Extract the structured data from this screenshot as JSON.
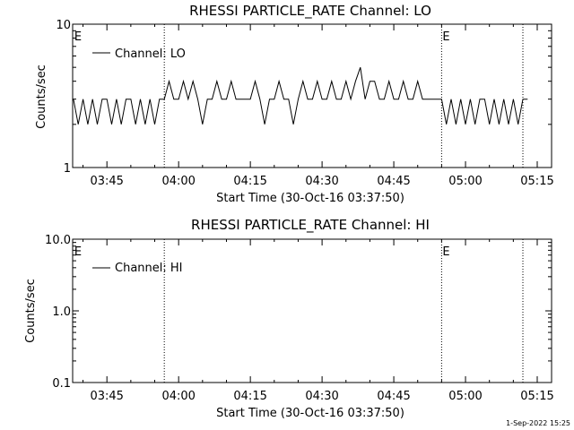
{
  "footer_timestamp": "1-Sep-2022 15:25",
  "chart_data": [
    {
      "type": "line",
      "title": "RHESSI PARTICLE_RATE Channel: LO",
      "xlabel": "Start Time (30-Oct-16 03:37:50)",
      "ylabel": "Counts/sec",
      "y_scale": "log",
      "ylim": [
        1,
        10
      ],
      "xlim": [
        "03:37:50",
        "05:18:00"
      ],
      "x_tick_labels": [
        "03:45",
        "04:00",
        "04:15",
        "04:30",
        "04:45",
        "05:00",
        "05:15"
      ],
      "y_tick_labels": [
        "1",
        "10"
      ],
      "legend": {
        "label": "Channel: LO",
        "position": "top-left"
      },
      "event_markers": [
        {
          "time": "03:38",
          "label": "E"
        },
        {
          "time": "04:55",
          "label": "E"
        }
      ],
      "vertical_lines": [
        "03:57",
        "04:55",
        "05:12"
      ],
      "series": [
        {
          "name": "Channel: LO",
          "x": [
            "03:38",
            "03:39",
            "03:40",
            "03:41",
            "03:42",
            "03:43",
            "03:44",
            "03:45",
            "03:46",
            "03:47",
            "03:48",
            "03:49",
            "03:50",
            "03:51",
            "03:52",
            "03:53",
            "03:54",
            "03:55",
            "03:56",
            "03:57",
            "03:58",
            "03:59",
            "04:00",
            "04:01",
            "04:02",
            "04:03",
            "04:04",
            "04:05",
            "04:06",
            "04:07",
            "04:08",
            "04:09",
            "04:10",
            "04:11",
            "04:12",
            "04:13",
            "04:14",
            "04:15",
            "04:16",
            "04:17",
            "04:18",
            "04:19",
            "04:20",
            "04:21",
            "04:22",
            "04:23",
            "04:24",
            "04:25",
            "04:26",
            "04:27",
            "04:28",
            "04:29",
            "04:30",
            "04:31",
            "04:32",
            "04:33",
            "04:34",
            "04:35",
            "04:36",
            "04:37",
            "04:38",
            "04:39",
            "04:40",
            "04:41",
            "04:42",
            "04:43",
            "04:44",
            "04:45",
            "04:46",
            "04:47",
            "04:48",
            "04:49",
            "04:50",
            "04:51",
            "04:52",
            "04:53",
            "04:54",
            "04:55",
            "04:56",
            "04:57",
            "04:58",
            "04:59",
            "05:00",
            "05:01",
            "05:02",
            "05:03",
            "05:04",
            "05:05",
            "05:06",
            "05:07",
            "05:08",
            "05:09",
            "05:10",
            "05:11",
            "05:12",
            "05:13"
          ],
          "y": [
            3,
            2,
            3,
            2,
            3,
            2,
            3,
            3,
            2,
            3,
            2,
            3,
            3,
            2,
            3,
            2,
            3,
            2,
            3,
            3,
            4,
            3,
            3,
            4,
            3,
            4,
            3,
            2,
            3,
            3,
            4,
            3,
            3,
            4,
            3,
            3,
            3,
            3,
            4,
            3,
            2,
            3,
            3,
            4,
            3,
            3,
            2,
            3,
            4,
            3,
            3,
            4,
            3,
            3,
            4,
            3,
            3,
            4,
            3,
            4,
            5,
            3,
            4,
            4,
            3,
            3,
            4,
            3,
            3,
            4,
            3,
            3,
            4,
            3,
            3,
            3,
            3,
            3,
            2,
            3,
            2,
            3,
            2,
            3,
            2,
            3,
            3,
            2,
            3,
            2,
            3,
            2,
            3,
            2,
            3,
            3
          ]
        }
      ]
    },
    {
      "type": "line",
      "title": "RHESSI PARTICLE_RATE Channel: HI",
      "xlabel": "Start Time (30-Oct-16 03:37:50)",
      "ylabel": "Counts/sec",
      "y_scale": "log",
      "ylim": [
        0.1,
        10.0
      ],
      "xlim": [
        "03:37:50",
        "05:18:00"
      ],
      "x_tick_labels": [
        "03:45",
        "04:00",
        "04:15",
        "04:30",
        "04:45",
        "05:00",
        "05:15"
      ],
      "y_tick_labels": [
        "0.1",
        "1.0",
        "10.0"
      ],
      "legend": {
        "label": "Channel: HI",
        "position": "top-left"
      },
      "event_markers": [
        {
          "time": "03:38",
          "label": "E"
        },
        {
          "time": "04:55",
          "label": "E"
        }
      ],
      "vertical_lines": [
        "03:57",
        "04:55",
        "05:12"
      ],
      "series": [
        {
          "name": "Channel: HI",
          "x": [],
          "y": []
        }
      ]
    }
  ]
}
